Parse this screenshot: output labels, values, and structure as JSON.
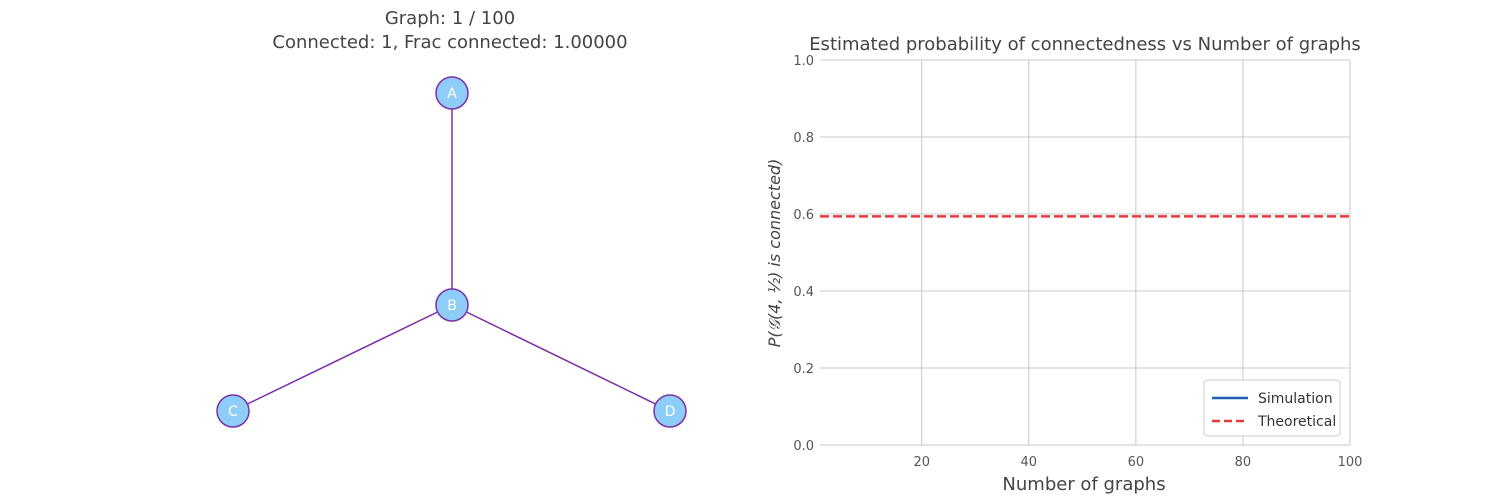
{
  "left_panel": {
    "title_line1": "Graph: 1 / 100",
    "title_line2": "Connected: 1, Frac connected: 1.00000",
    "graph": {
      "nodes": [
        "A",
        "B",
        "C",
        "D"
      ],
      "edges": [
        [
          "A",
          "B"
        ],
        [
          "B",
          "C"
        ],
        [
          "B",
          "D"
        ]
      ],
      "node_fill": "#8ecdf8",
      "node_stroke": "#7b2fa8",
      "edge_color": "#7b2fa8"
    }
  },
  "chart_data": {
    "type": "line",
    "title": "Estimated probability of connectedness vs Number of graphs",
    "xlabel": "Number of graphs",
    "ylabel": "P(𝒢(4, ½) is connected)",
    "xlim": [
      1,
      100
    ],
    "ylim": [
      0.0,
      1.0
    ],
    "xticks": [
      "20",
      "40",
      "60",
      "80",
      "100"
    ],
    "yticks": [
      "0.0",
      "0.2",
      "0.4",
      "0.6",
      "0.8",
      "1.0"
    ],
    "xtick_values": [
      20,
      40,
      60,
      80,
      100
    ],
    "ytick_values": [
      0.0,
      0.2,
      0.4,
      0.6,
      0.8,
      1.0
    ],
    "grid": true,
    "legend_position": "lower-right",
    "series": [
      {
        "name": "Simulation",
        "color": "#1f5fb4",
        "style": "solid",
        "x": [],
        "y": []
      },
      {
        "name": "Theoretical",
        "color": "#e8393d",
        "style": "dashed",
        "x": [
          1,
          100
        ],
        "y": [
          0.59375,
          0.59375
        ]
      }
    ]
  }
}
